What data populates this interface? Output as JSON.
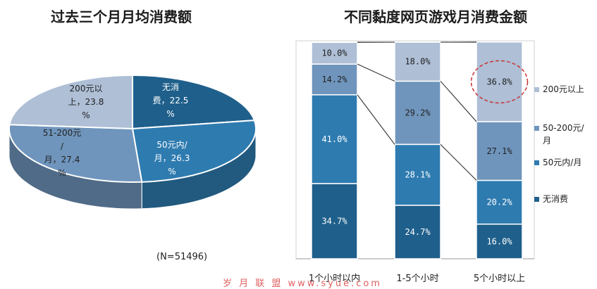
{
  "left_chart": {
    "title": "过去三个月月均消费额",
    "note": "(N=51496)"
  },
  "right_chart": {
    "title": "不同黏度网页游戏月消费金额"
  },
  "watermark": "岁 月 联 盟 www.syue.com",
  "colors": {
    "none": "#1f5f8b",
    "under50": "#2e7bb0",
    "50to200": "#6f95bc",
    "over200": "#aebfd6",
    "highlight_circle": "#cc3333"
  },
  "chart_data": [
    {
      "type": "pie",
      "title": "过去三个月月均消费额",
      "slices": [
        {
          "label": "无消费",
          "value": 22.5,
          "color": "#1f5f8b",
          "text": [
            "无消",
            "费，22.5",
            "%"
          ]
        },
        {
          "label": "50元内/月",
          "value": 26.3,
          "color": "#2e7bb0",
          "text": [
            "50元内/",
            "月，26.3",
            "%"
          ]
        },
        {
          "label": "51-200元/月",
          "value": 27.4,
          "color": "#6f95bc",
          "text": [
            "51-200元",
            "/",
            "月，27.4",
            "%"
          ]
        },
        {
          "label": "200元以上",
          "value": 23.8,
          "color": "#aebfd6",
          "text": [
            "200元以",
            "上，23.8",
            "%"
          ]
        }
      ],
      "note": "(N=51496)"
    },
    {
      "type": "bar",
      "stacked": true,
      "title": "不同黏度网页游戏月消费金额",
      "categories": [
        "1个小时以内",
        "1-5个小时",
        "5个小时以上"
      ],
      "ylim": [
        0,
        100
      ],
      "series": [
        {
          "name": "无消费",
          "color": "#1f5f8b",
          "values": [
            34.7,
            24.7,
            16.0
          ],
          "labels": [
            "34.7%",
            "24.7%",
            "16.0%"
          ]
        },
        {
          "name": "50元内/月",
          "color": "#2e7bb0",
          "values": [
            41.0,
            28.1,
            20.2
          ],
          "labels": [
            "41.0%",
            "28.1%",
            "20.2%"
          ]
        },
        {
          "name": "50-200元/月",
          "color": "#6f95bc",
          "values": [
            14.2,
            29.2,
            27.1
          ],
          "labels": [
            "14.2%",
            "29.2%",
            "27.1%"
          ]
        },
        {
          "name": "200元以上",
          "color": "#aebfd6",
          "values": [
            10.0,
            18.0,
            36.8
          ],
          "labels": [
            "10.0%",
            "18.0%",
            "36.8%"
          ]
        }
      ],
      "legend_order": [
        "200元以上",
        "50-200元/月",
        "50元内/月",
        "无消费"
      ],
      "legend_text": [
        [
          "200元以上"
        ],
        [
          "50-200元/",
          "月"
        ],
        [
          "50元内/月"
        ],
        [
          "无消费"
        ]
      ],
      "legend": "right",
      "highlight": "36.8%"
    }
  ]
}
